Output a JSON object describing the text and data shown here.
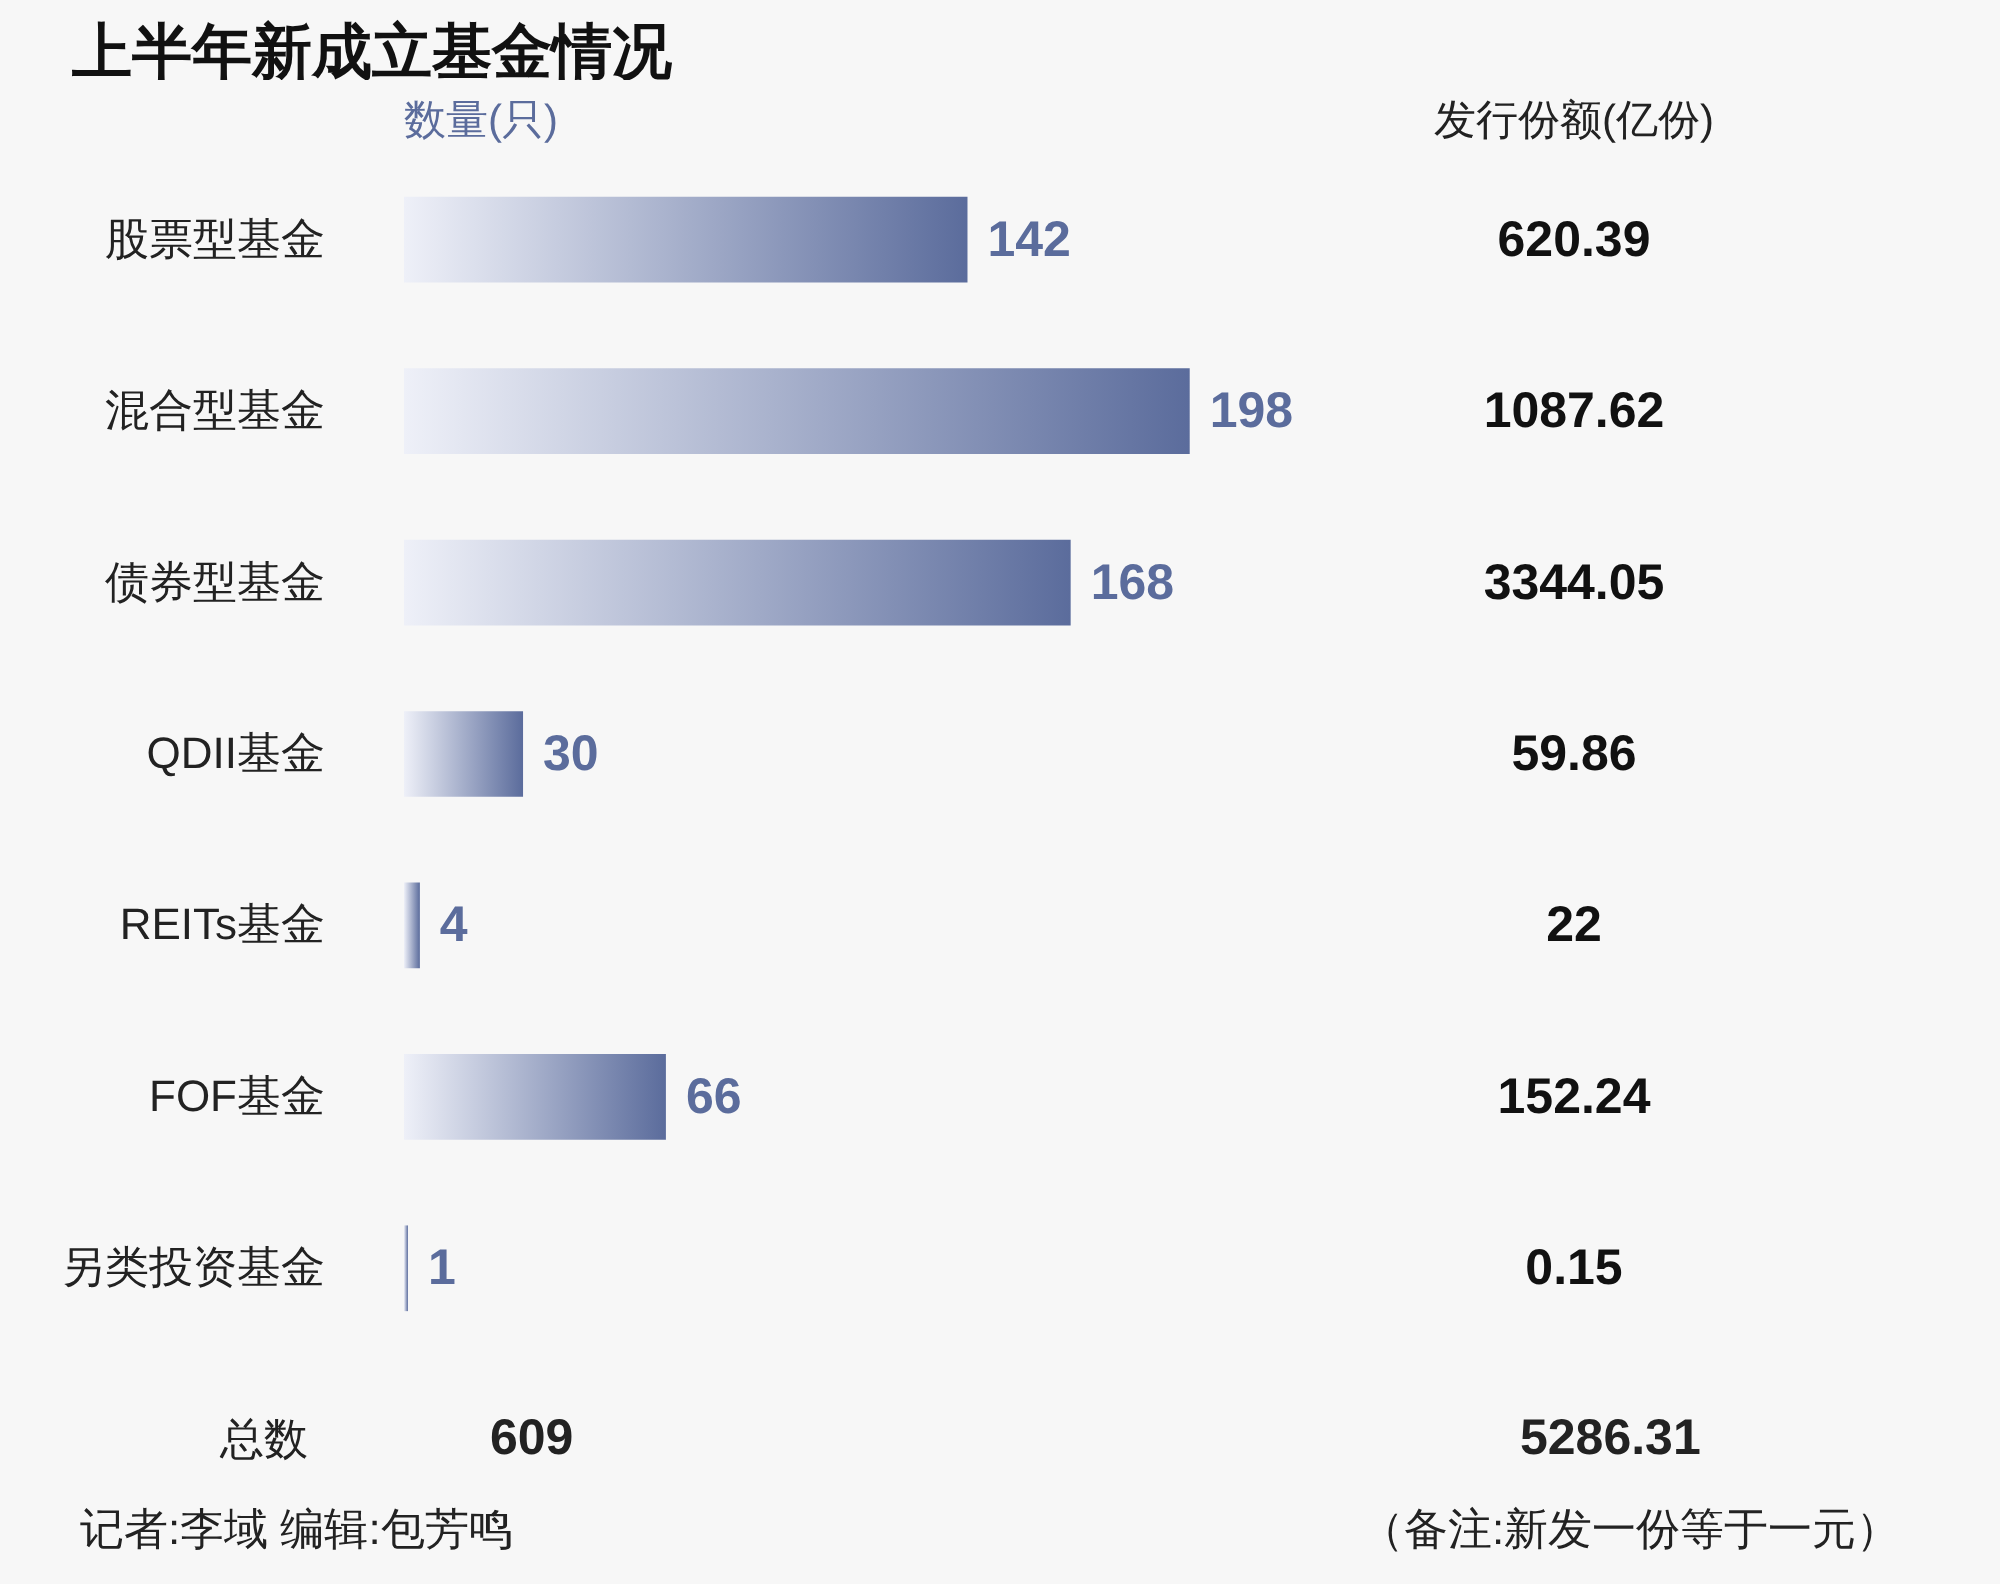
{
  "chart_data": [
    {
      "type": "bar",
      "orientation": "horizontal",
      "title": "上半年新成立基金情况",
      "categories": [
        "股票型基金",
        "混合型基金",
        "债券型基金",
        "QDII基金",
        "REITs基金",
        "FOF基金",
        "另类投资基金"
      ],
      "series": [
        {
          "name": "数量(只)",
          "color": "#5b6c9c",
          "values": [
            142,
            198,
            168,
            30,
            4,
            66,
            1
          ]
        }
      ],
      "data_labels": true,
      "annotations": [
        "总数",
        "609",
        "记者:李域  编辑:包芳鸣"
      ]
    },
    {
      "type": "other",
      "title": "发行份额(亿份)",
      "categories": [
        null,
        null,
        null,
        null,
        null,
        null,
        null
      ],
      "values": [
        620.39,
        1087.62,
        3344.05,
        59.86,
        22,
        152.24,
        0.15
      ],
      "data_labels": true,
      "annotations": [
        "5286.31",
        "（备注:新发一份等于一元）"
      ]
    }
  ]
}
